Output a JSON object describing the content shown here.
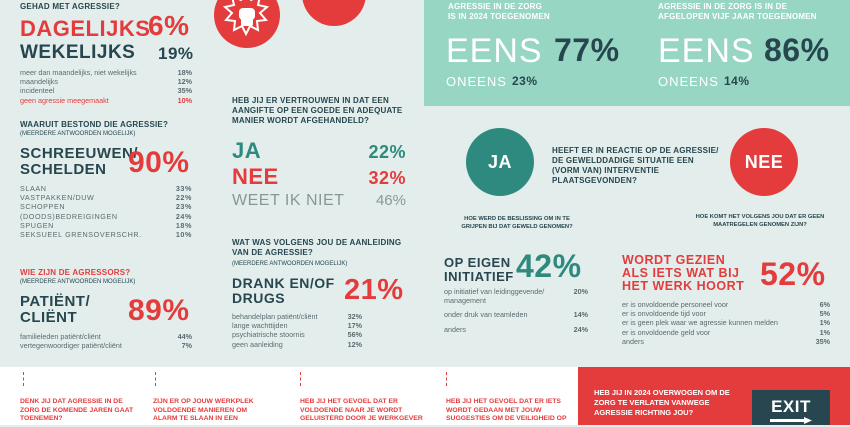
{
  "col1": {
    "freq_title": "GEHAD MET AGRESSIE?",
    "freq_big": [
      {
        "label": "DAGELIJKS",
        "value": "6%"
      },
      {
        "label": "WEKELIJKS",
        "value": "19%"
      }
    ],
    "freq_rows": [
      {
        "label": "meer dan maandelijks, niet wekelijks",
        "value": "18%"
      },
      {
        "label": "maandelijks",
        "value": "12%"
      },
      {
        "label": "incidenteel",
        "value": "35%"
      },
      {
        "label": "geen agressie meegemaakt",
        "value": "10%"
      }
    ],
    "type_title": "WAARUIT BESTOND DIE AGRESSIE?",
    "type_sub": "(MEERDERE ANTWOORDEN MOGELIJK)",
    "type_big_line1": "SCHREEUWEN/",
    "type_big_line2": "SCHELDEN",
    "type_big_value": "90%",
    "type_rows": [
      {
        "label": "SLAAN",
        "value": "33%"
      },
      {
        "label": "VASTPAKKEN/DUW",
        "value": "22%"
      },
      {
        "label": "SCHOPPEN",
        "value": "23%"
      },
      {
        "label": "(DOODS)BEDREIGINGEN",
        "value": "24%"
      },
      {
        "label": "SPUGEN",
        "value": "18%"
      },
      {
        "label": "SEKSUEEL GRENSOVERSCHR.",
        "value": "10%"
      }
    ],
    "who_title": "WIE ZIJN DE AGRESSORS?",
    "who_sub": "(MEERDERE ANTWOORDEN MOGELIJK)",
    "who_big_line1": "PATIËNT/",
    "who_big_line2": "CLIËNT",
    "who_big_value": "89%",
    "who_rows": [
      {
        "label": "familieleden patiënt/cliënt",
        "value": "44%"
      },
      {
        "label": "vertegenwoordiger patiënt/cliënt",
        "value": "7%"
      }
    ]
  },
  "col2": {
    "trust_title": "HEB JIJ ER VERTROUWEN IN DAT EEN AANGIFTE OP EEN GOEDE EN ADEQUATE MANIER WORDT AFGEHANDELD?",
    "trust_rows": [
      {
        "label": "JA",
        "value": "22%"
      },
      {
        "label": "NEE",
        "value": "32%"
      },
      {
        "label": "WEET IK NIET",
        "value": "46%"
      }
    ],
    "cause_title": "WAT WAS VOLGENS JOU DE AANLEIDING VAN DE AGRESSIE?",
    "cause_sub": "(MEERDERE ANTWOORDEN MOGELIJK)",
    "cause_big_line1": "DRANK EN/OF",
    "cause_big_line2": "DRUGS",
    "cause_big_value": "21%",
    "cause_rows": [
      {
        "label": "behandelplan patiënt/cliënt",
        "value": "32%"
      },
      {
        "label": "lange wachttijden",
        "value": "17%"
      },
      {
        "label": "psychiatrische stoornis",
        "value": "56%"
      },
      {
        "label": "geen aanleiding",
        "value": "12%"
      }
    ]
  },
  "top_right": {
    "left_title_line1": "AGRESSIE IN DE ZORG",
    "left_title_line2": "IS IN 2024 TOEGENOMEN",
    "left_eens": "EENS",
    "left_eens_value": "77%",
    "left_oneens": "ONEENS",
    "left_oneens_value": "23%",
    "right_title_line1": "AGRESSIE IN DE ZORG IS IN DE",
    "right_title_line2": "AFGELOPEN VIJF JAAR TOEGENOMEN",
    "right_eens": "EENS",
    "right_eens_value": "86%",
    "right_oneens": "ONEENS",
    "right_oneens_value": "14%"
  },
  "intervention": {
    "question": "HEEFT ER IN REACTIE OP DE AGRESSIE/ DE GEWELDDADIGE SITUATIE EEN (VORM VAN) INTERVENTIE PLAATSGEVONDEN?",
    "ja": "JA",
    "nee": "NEE",
    "ja_q": "HOE WERD DE BESLISSING OM IN TE GRIJPEN BIJ DAT GEWELD GENOMEN?",
    "ja_big_line1": "OP EIGEN",
    "ja_big_line2": "INITIATIEF",
    "ja_big_value": "42%",
    "ja_rows": [
      {
        "label": "op initiatief van leidinggevende/ management",
        "value": "20%"
      },
      {
        "label": "onder druk van teamleden",
        "value": "14%"
      },
      {
        "label": "anders",
        "value": "24%"
      }
    ],
    "nee_q": "HOE KOMT HET VOLGENS JOU DAT ER GEEN MAATREGELEN GENOMEN ZIJN?",
    "nee_big_line1": "WORDT GEZIEN",
    "nee_big_line2": "ALS IETS WAT BIJ",
    "nee_big_line3": "HET WERK HOORT",
    "nee_big_value": "52%",
    "nee_rows": [
      {
        "label": "er is onvoldoende personeel voor",
        "value": "6%"
      },
      {
        "label": "er is onvoldoende tijd voor",
        "value": "5%"
      },
      {
        "label": "er is geen plek waar we agressie kunnen melden",
        "value": "1%"
      },
      {
        "label": "er is onvoldoende geld voor",
        "value": "1%"
      },
      {
        "label": "anders",
        "value": "35%"
      }
    ]
  },
  "bottom": {
    "q1": "DENK JIJ DAT AGRESSIE IN DE ZORG DE KOMENDE JAREN GAAT TOENEMEN?",
    "q2": "ZIJN ER OP JOUW WERKPLEK VOLDOENDE MANIEREN OM ALARM TE SLAAN IN EEN",
    "q3": "HEB JIJ HET GEVOEL DAT ER VOLDOENDE NAAR JE WORDT GELUISTERD DOOR JE WERKGEVER",
    "q4": "HEB JIJ HET GEVOEL DAT ER IETS WORDT GEDAAN MET JOUW SUGGESTIES OM DE VEILIGHEID OP",
    "exit_q": "HEB JIJ IN 2024 OVERWOGEN OM DE ZORG TE VERLATEN VANWEGE AGRESSIE RICHTING JOU?",
    "exit_label": "EXIT"
  },
  "colors": {
    "red": "#e43b3c",
    "teal": "#2e8a7f",
    "mint": "#97d6c3",
    "dark": "#27464f",
    "background": "#e3eeec"
  }
}
